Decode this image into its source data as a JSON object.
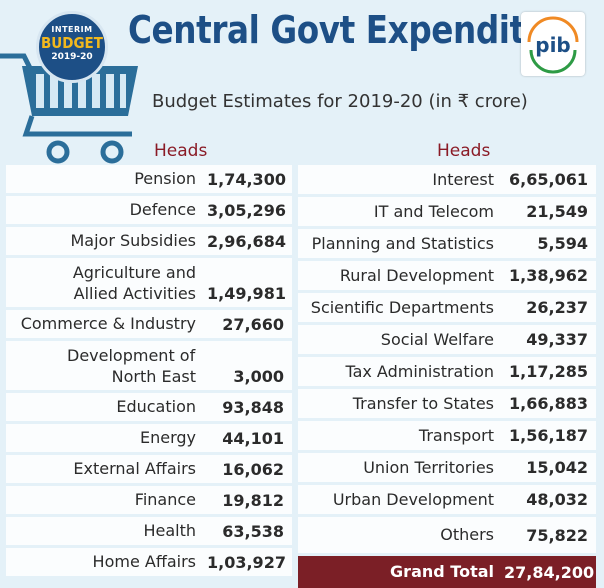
{
  "badge": {
    "line1": "INTERIM",
    "line2": "BUDGET",
    "line3": "2019-20"
  },
  "title": "Central  Govt Expenditure",
  "subtitle": "Budget Estimates for 2019-20 (in ₹ crore)",
  "logo": {
    "name": "pib-logo",
    "text": "pib"
  },
  "left": {
    "heading": "Heads",
    "rows": [
      {
        "name": "Pension",
        "value": "1,74,300"
      },
      {
        "name": "Defence",
        "value": "3,05,296"
      },
      {
        "name": "Major Subsidies",
        "value": "2,96,684"
      },
      {
        "name1": "Agriculture and",
        "name2": "Allied Activities",
        "value": "1,49,981"
      },
      {
        "name": "Commerce & Industry",
        "value": "27,660"
      },
      {
        "name1": "Development of",
        "name2": "North East",
        "value": "3,000"
      },
      {
        "name": "Education",
        "value": "93,848"
      },
      {
        "name": "Energy",
        "value": "44,101"
      },
      {
        "name": "External Affairs",
        "value": "16,062"
      },
      {
        "name": "Finance",
        "value": "19,812"
      },
      {
        "name": "Health",
        "value": "63,538"
      },
      {
        "name": "Home Affairs",
        "value": "1,03,927"
      }
    ]
  },
  "right": {
    "heading": "Heads",
    "rows": [
      {
        "name": "Interest",
        "value": "6,65,061"
      },
      {
        "name": "IT and Telecom",
        "value": "21,549"
      },
      {
        "name": "Planning and Statistics",
        "value": "5,594"
      },
      {
        "name": "Rural Development",
        "value": "1,38,962"
      },
      {
        "name": "Scientific Departments",
        "value": "26,237"
      },
      {
        "name": "Social Welfare",
        "value": "49,337"
      },
      {
        "name": "Tax Administration",
        "value": "1,17,285"
      },
      {
        "name": "Transfer to States",
        "value": "1,66,883"
      },
      {
        "name": "Transport",
        "value": "1,56,187"
      },
      {
        "name": "Union Territories",
        "value": "15,042"
      },
      {
        "name": "Urban Development",
        "value": "48,032"
      },
      {
        "name": "Others",
        "value": "75,822"
      }
    ],
    "grand_total": {
      "name": "Grand Total",
      "value": "27,84,200"
    }
  },
  "colors": {
    "title": "#1d4f86",
    "heading": "#8a1b26",
    "grand_total_bg": "#7b1f26",
    "background": "#e4f1f8",
    "badge_accent": "#f2b81d"
  }
}
